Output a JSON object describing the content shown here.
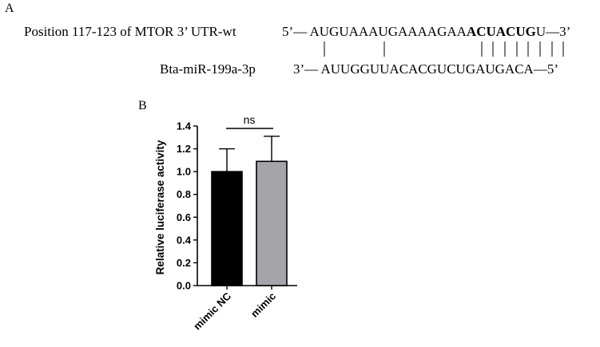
{
  "panel_a": {
    "letter": "A",
    "utr_label": "Position 117-123 of MTOR 3’ UTR-wt",
    "utr_prefix": "5’—",
    "utr_seq_normal": "AUGUAAAUGAAAAGAA",
    "utr_seq_bold": [
      "ACU",
      "ACUG"
    ],
    "utr_seq_between": "",
    "utr_suffix_plain": "U—3’",
    "mirna_label": "Bta-miR-199a-3p",
    "mirna_prefix": "3’—",
    "mirna_seq": "AUUGGUUACACGUCUGAUGACA",
    "mirna_suffix": "—5’"
  },
  "panel_b": {
    "letter": "B"
  },
  "chart_data": {
    "type": "bar",
    "categories": [
      "mimic NC",
      "mimic"
    ],
    "values": [
      1.0,
      1.09
    ],
    "errors": [
      0.2,
      0.22
    ],
    "ylabel": "Relative luciferase activity",
    "xlabel": "",
    "ylim": [
      0,
      1.4
    ],
    "yticks": [
      "0.0",
      "0.2",
      "0.4",
      "0.6",
      "0.8",
      "1.0",
      "1.2",
      "1.4"
    ],
    "significance": "ns",
    "bar_colors": [
      "#000000",
      "#a5a4aa"
    ],
    "grid": false
  }
}
